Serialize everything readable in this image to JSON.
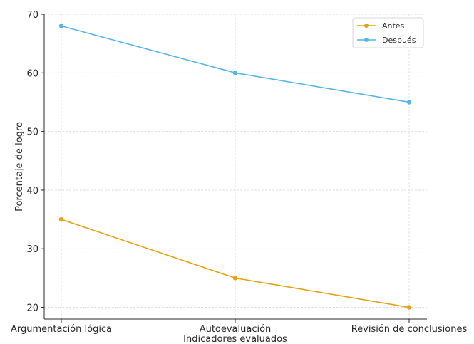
{
  "chart_data": {
    "type": "line",
    "title": "",
    "xlabel": "Indicadores evaluados",
    "ylabel": "Porcentaje de logro",
    "categories": [
      "Argumentación lógica",
      "Autoevaluación",
      "Revisión de conclusiones"
    ],
    "ylim": [
      18,
      70
    ],
    "yticks": [
      20,
      30,
      40,
      50,
      60,
      70
    ],
    "grid": true,
    "legend": "top-right",
    "series": [
      {
        "name": "Antes",
        "values": [
          35,
          25,
          20
        ],
        "color": "#e6a010"
      },
      {
        "name": "Después",
        "values": [
          68,
          60,
          55
        ],
        "color": "#56b4e9"
      }
    ]
  }
}
